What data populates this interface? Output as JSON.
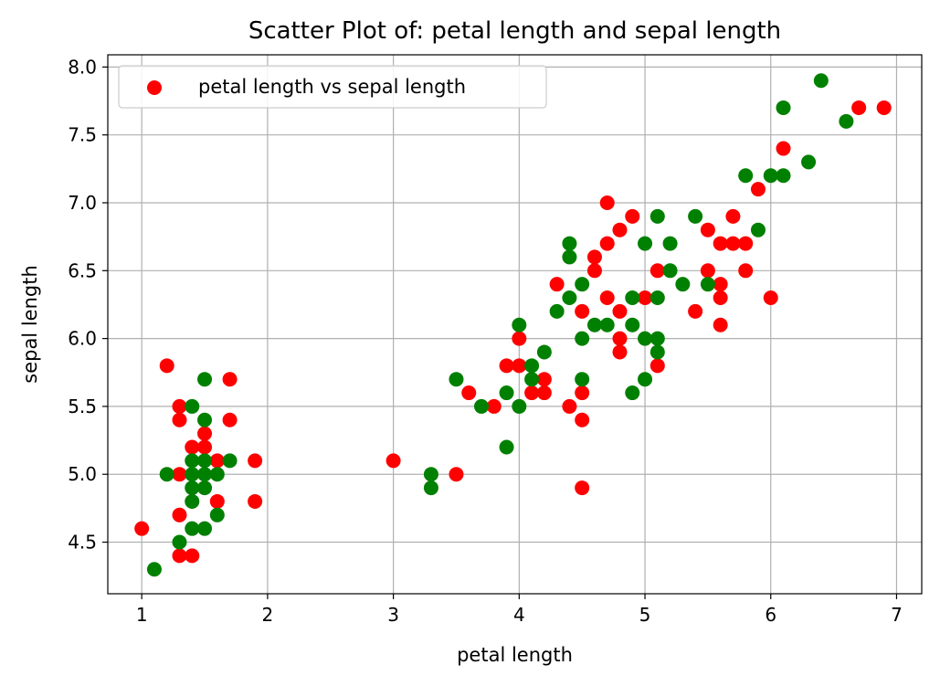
{
  "chart_data": {
    "type": "scatter",
    "title": "Scatter Plot of: petal length and sepal length",
    "xlabel": "petal length",
    "ylabel": "sepal length",
    "xlim": [
      0.73,
      7.2
    ],
    "ylim": [
      4.12,
      8.09
    ],
    "xticks": [
      "1",
      "2",
      "3",
      "4",
      "5",
      "6",
      "7"
    ],
    "yticks": [
      "4.5",
      "5.0",
      "5.5",
      "6.0",
      "6.5",
      "7.0",
      "7.5",
      "8.0"
    ],
    "grid": true,
    "legend": {
      "position": "upper-left",
      "label": "petal length vs sepal length",
      "marker_color": "#ff0000"
    },
    "colors": {
      "red": "#ff0000",
      "green": "#008000",
      "grid": "#b0b0b0"
    },
    "series": [
      {
        "color": "#ff0000",
        "points": [
          [
            1.0,
            4.6
          ],
          [
            1.2,
            5.8
          ],
          [
            1.3,
            5.5
          ],
          [
            1.3,
            5.4
          ],
          [
            1.3,
            5.0
          ],
          [
            1.3,
            4.7
          ],
          [
            1.3,
            4.4
          ],
          [
            1.4,
            4.4
          ],
          [
            1.4,
            5.2
          ],
          [
            1.5,
            5.2
          ],
          [
            1.5,
            5.3
          ],
          [
            1.6,
            5.1
          ],
          [
            1.6,
            4.8
          ],
          [
            1.7,
            5.7
          ],
          [
            1.7,
            5.4
          ],
          [
            1.9,
            5.1
          ],
          [
            1.9,
            4.8
          ],
          [
            3.0,
            5.1
          ],
          [
            3.5,
            5.0
          ],
          [
            3.6,
            5.6
          ],
          [
            3.8,
            5.5
          ],
          [
            3.9,
            5.8
          ],
          [
            4.0,
            5.8
          ],
          [
            4.0,
            6.0
          ],
          [
            4.1,
            5.6
          ],
          [
            4.2,
            5.7
          ],
          [
            4.2,
            5.6
          ],
          [
            4.3,
            6.4
          ],
          [
            4.4,
            5.5
          ],
          [
            4.5,
            6.2
          ],
          [
            4.5,
            5.6
          ],
          [
            4.5,
            5.4
          ],
          [
            4.5,
            4.9
          ],
          [
            4.6,
            6.6
          ],
          [
            4.6,
            6.5
          ],
          [
            4.7,
            7.0
          ],
          [
            4.7,
            6.7
          ],
          [
            4.7,
            6.3
          ],
          [
            4.8,
            6.8
          ],
          [
            4.8,
            6.2
          ],
          [
            4.8,
            6.0
          ],
          [
            4.8,
            5.9
          ],
          [
            4.9,
            6.9
          ],
          [
            5.0,
            6.3
          ],
          [
            5.1,
            6.5
          ],
          [
            5.1,
            5.8
          ],
          [
            5.4,
            6.2
          ],
          [
            5.5,
            6.8
          ],
          [
            5.5,
            6.5
          ],
          [
            5.6,
            6.4
          ],
          [
            5.6,
            6.3
          ],
          [
            5.6,
            6.1
          ],
          [
            5.6,
            6.7
          ],
          [
            5.7,
            6.7
          ],
          [
            5.7,
            6.9
          ],
          [
            5.8,
            6.7
          ],
          [
            5.8,
            6.5
          ],
          [
            5.9,
            7.1
          ],
          [
            6.0,
            6.3
          ],
          [
            6.1,
            7.4
          ],
          [
            6.7,
            7.7
          ],
          [
            6.9,
            7.7
          ]
        ]
      },
      {
        "color": "#008000",
        "points": [
          [
            1.1,
            4.3
          ],
          [
            1.2,
            5.0
          ],
          [
            1.3,
            4.5
          ],
          [
            1.4,
            5.5
          ],
          [
            1.4,
            5.1
          ],
          [
            1.4,
            5.0
          ],
          [
            1.4,
            4.9
          ],
          [
            1.4,
            4.8
          ],
          [
            1.4,
            4.6
          ],
          [
            1.5,
            5.7
          ],
          [
            1.5,
            5.4
          ],
          [
            1.5,
            5.1
          ],
          [
            1.5,
            5.0
          ],
          [
            1.5,
            4.9
          ],
          [
            1.5,
            4.6
          ],
          [
            1.6,
            5.0
          ],
          [
            1.6,
            4.7
          ],
          [
            1.7,
            5.1
          ],
          [
            3.3,
            5.0
          ],
          [
            3.3,
            4.9
          ],
          [
            3.5,
            5.7
          ],
          [
            3.7,
            5.5
          ],
          [
            3.9,
            5.6
          ],
          [
            3.9,
            5.2
          ],
          [
            4.0,
            6.1
          ],
          [
            4.0,
            5.5
          ],
          [
            4.1,
            5.8
          ],
          [
            4.1,
            5.7
          ],
          [
            4.2,
            5.9
          ],
          [
            4.3,
            6.2
          ],
          [
            4.4,
            6.7
          ],
          [
            4.4,
            6.6
          ],
          [
            4.4,
            6.3
          ],
          [
            4.5,
            6.4
          ],
          [
            4.5,
            6.0
          ],
          [
            4.5,
            5.7
          ],
          [
            4.6,
            6.1
          ],
          [
            4.7,
            6.1
          ],
          [
            4.9,
            6.3
          ],
          [
            4.9,
            6.1
          ],
          [
            4.9,
            5.6
          ],
          [
            5.0,
            6.7
          ],
          [
            5.0,
            6.0
          ],
          [
            5.0,
            5.7
          ],
          [
            5.1,
            6.9
          ],
          [
            5.1,
            6.3
          ],
          [
            5.1,
            6.0
          ],
          [
            5.1,
            5.9
          ],
          [
            5.2,
            6.7
          ],
          [
            5.2,
            6.5
          ],
          [
            5.3,
            6.4
          ],
          [
            5.4,
            6.9
          ],
          [
            5.5,
            6.4
          ],
          [
            5.8,
            7.2
          ],
          [
            5.9,
            6.8
          ],
          [
            6.0,
            7.2
          ],
          [
            6.1,
            7.7
          ],
          [
            6.1,
            7.2
          ],
          [
            6.3,
            7.3
          ],
          [
            6.4,
            7.9
          ],
          [
            6.6,
            7.6
          ]
        ]
      }
    ]
  }
}
